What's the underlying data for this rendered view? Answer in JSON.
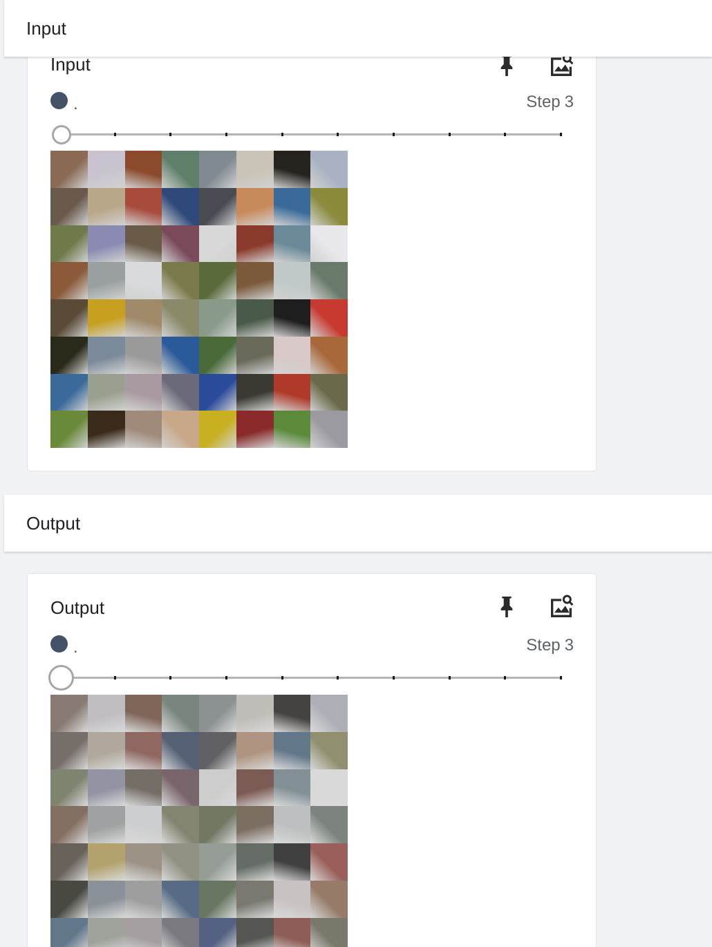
{
  "sections": {
    "input": {
      "header": "Input",
      "card_title": "Input",
      "run_label": ".",
      "step_word": "Step",
      "step_value": "3",
      "pin_icon": "pin-icon",
      "image_icon": "image-search-icon"
    },
    "output": {
      "header": "Output",
      "card_title": "Output",
      "run_label": ".",
      "step_word": "Step",
      "step_value": "3",
      "pin_icon": "pin-icon",
      "image_icon": "image-search-icon"
    }
  },
  "colors": {
    "run_dot": "#435266",
    "background": "#f1f2f4"
  },
  "slider": {
    "position": 0,
    "steps": 10
  },
  "mosaic_colors": [
    "#8a6a55",
    "#c9c3cf",
    "#8b4a2c",
    "#5f7f6a",
    "#7f8a90",
    "#c9c3b7",
    "#26221e",
    "#a9b2c2",
    "#6a5a4e",
    "#b9a78a",
    "#a84a3c",
    "#2f4a7a",
    "#4a4a52",
    "#c98a5a",
    "#3a6a9a",
    "#8a8a3a",
    "#6f7a4a",
    "#8a8ab2",
    "#6a5a48",
    "#7a4a5a",
    "#d8d8d8",
    "#8a3a2a",
    "#6a8a9a",
    "#e8e8ea",
    "#8a5a3a",
    "#9aa0a0",
    "#d8dadc",
    "#7a7a4a",
    "#5a6a3a",
    "#7a5a3a",
    "#c0c8c8",
    "#6a7a6a",
    "#5a4a38",
    "#c8a020",
    "#a08a6a",
    "#8a8a6a",
    "#8a9a8a",
    "#4a5a4a",
    "#1e1e1e",
    "#c83a30",
    "#2a2a1a",
    "#7a8a9a",
    "#9a9a9a",
    "#2a5a9a",
    "#4a6a3a",
    "#6a6a5a",
    "#d8c8c8",
    "#a8683a",
    "#3a6a9a",
    "#9aa090",
    "#a89aa0",
    "#6a6a7a",
    "#2a4a9a",
    "#3a3a32",
    "#b03a2a",
    "#6a6a4a",
    "#6a8a3a",
    "#3a2a1a",
    "#a08a7a",
    "#c8a888",
    "#c8b020",
    "#8a2a2a",
    "#5a8a3a",
    "#9a9aa0"
  ]
}
